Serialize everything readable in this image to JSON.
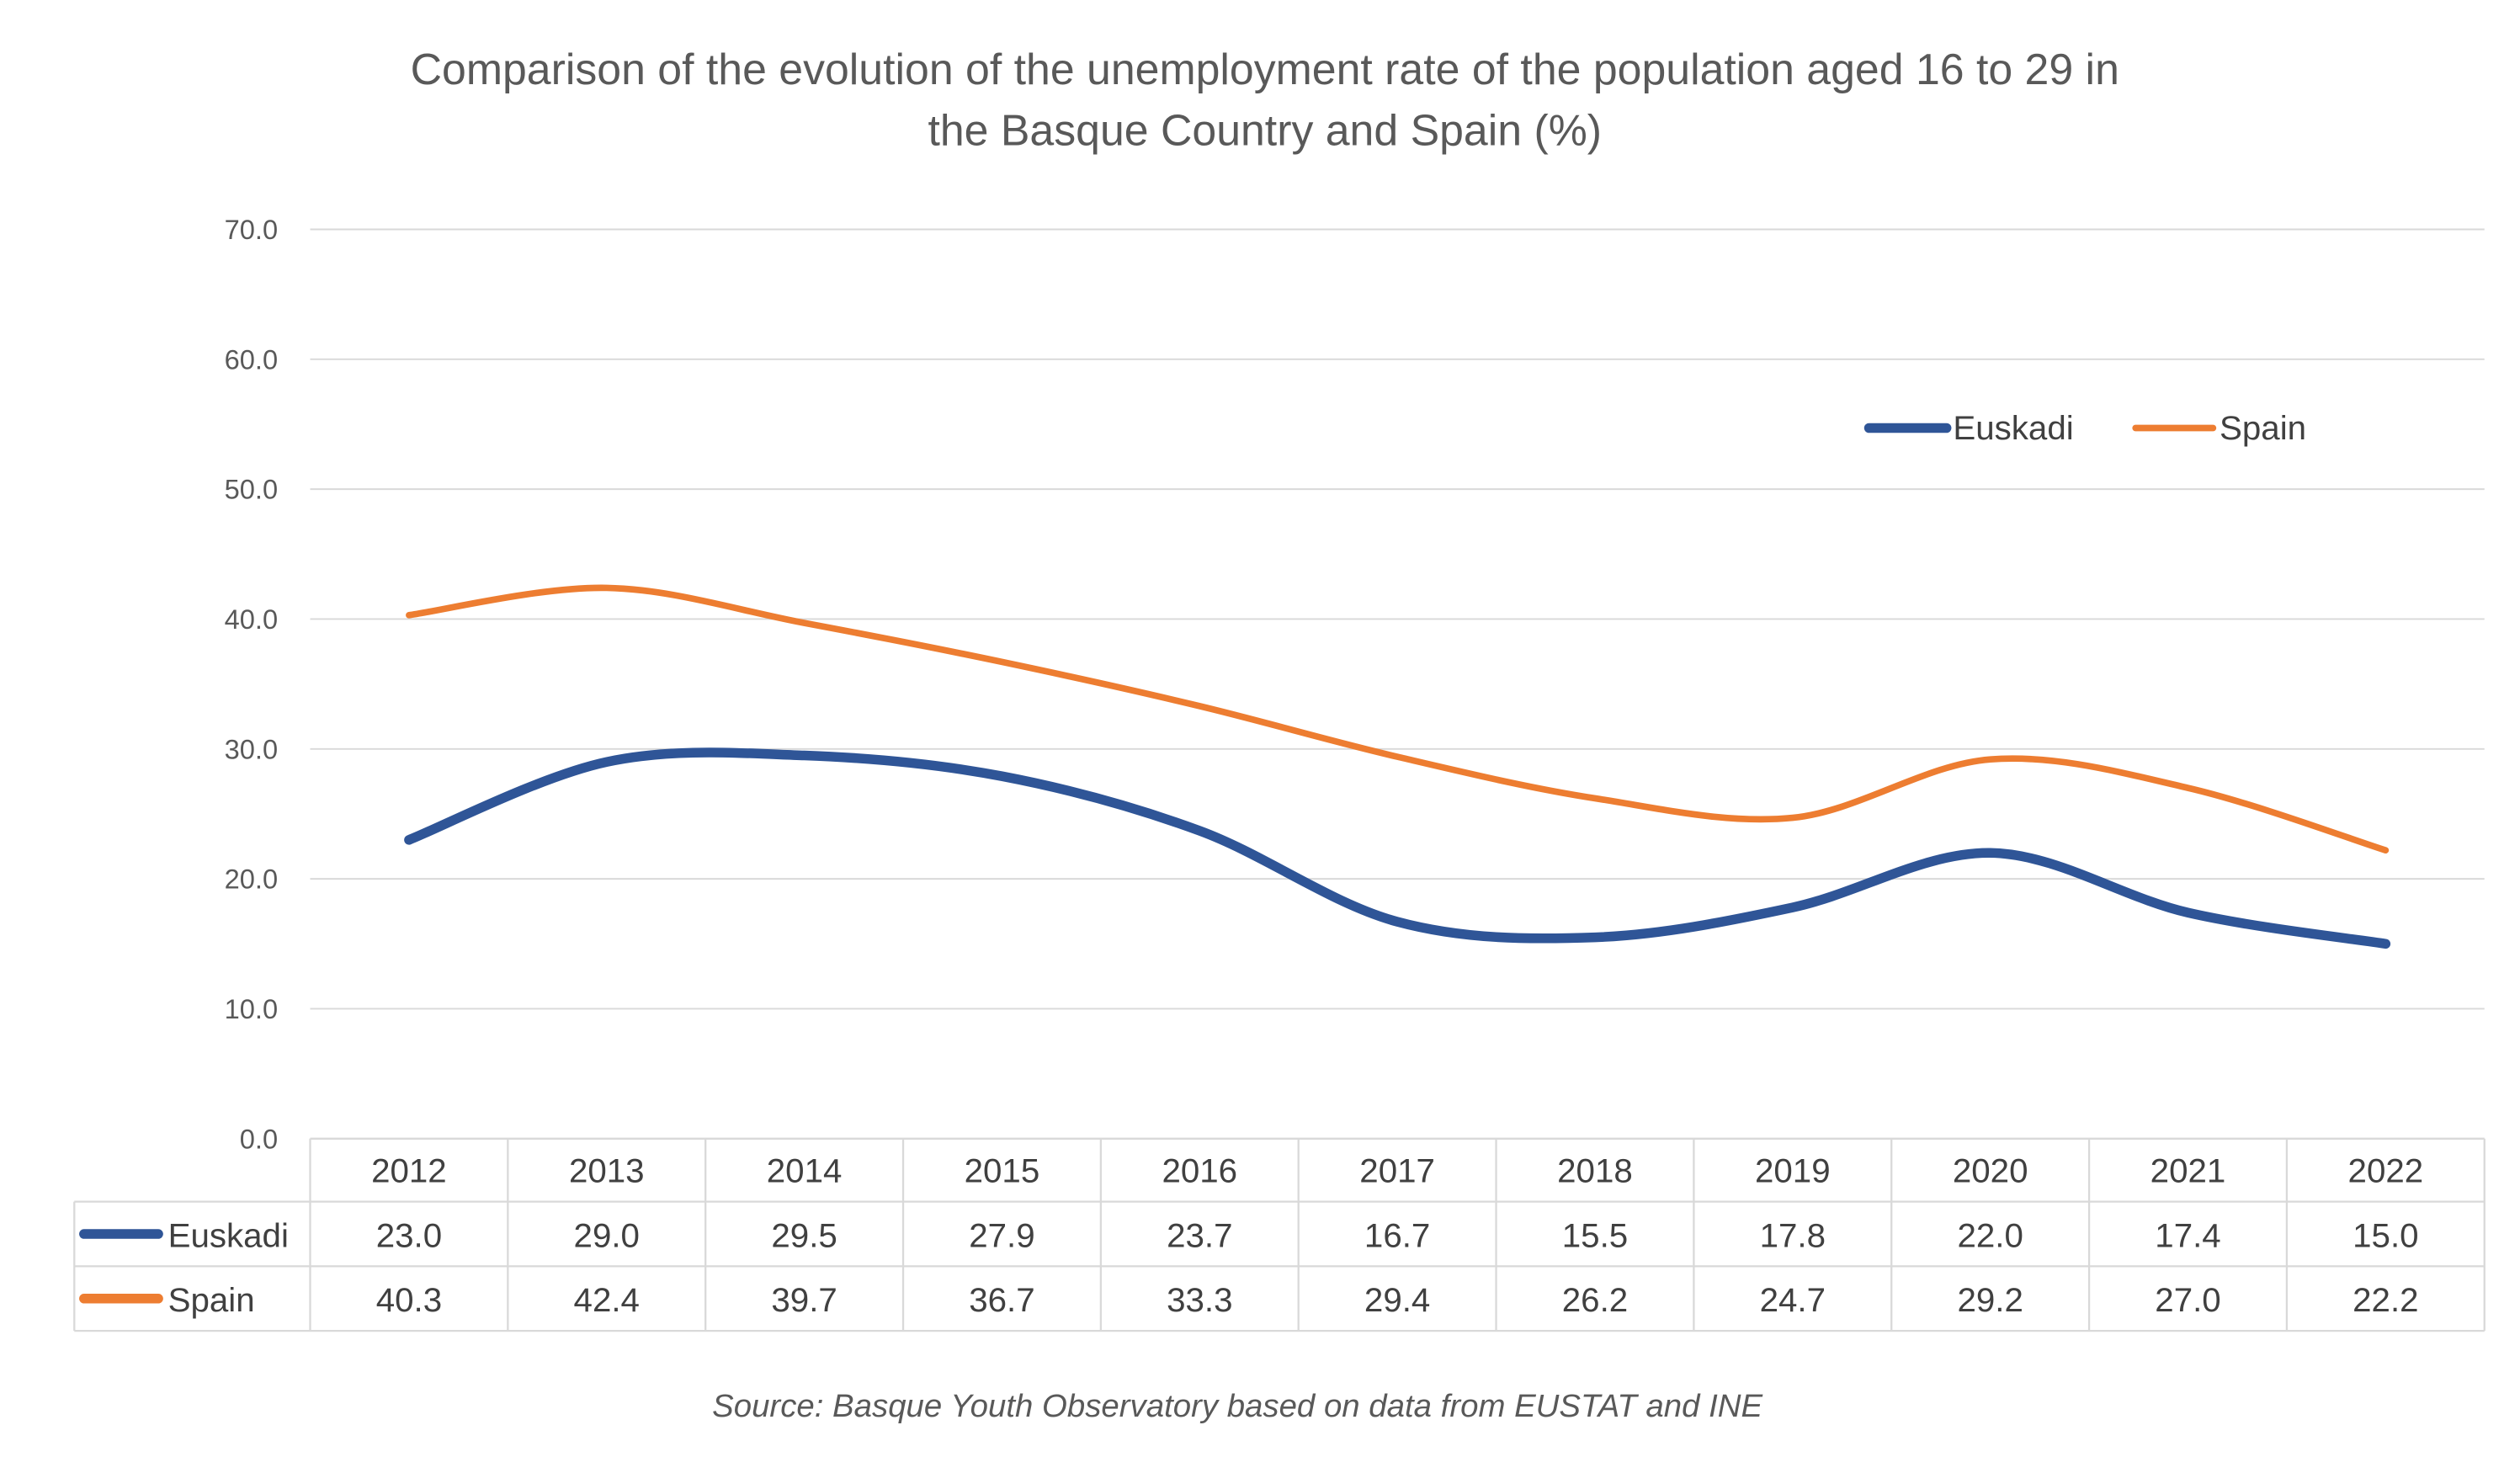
{
  "chart_data": {
    "type": "line",
    "title": "Comparison of the evolution of the unemployment rate of the population aged 16 to 29 in the Basque Country and Spain (%)",
    "title_lines": [
      "Comparison of the evolution of the unemployment rate of the population aged 16 to 29 in",
      "the Basque Country and Spain (%)"
    ],
    "xlabel": "",
    "ylabel": "",
    "categories": [
      "2012",
      "2013",
      "2014",
      "2015",
      "2016",
      "2017",
      "2018",
      "2019",
      "2020",
      "2021",
      "2022"
    ],
    "series": [
      {
        "name": "Euskadi",
        "color": "#2F5597",
        "values": [
          23.0,
          29.0,
          29.5,
          27.9,
          23.7,
          16.7,
          15.5,
          17.8,
          22.0,
          17.4,
          15.0
        ]
      },
      {
        "name": "Spain",
        "color": "#ED7D31",
        "values": [
          40.3,
          42.4,
          39.7,
          36.7,
          33.3,
          29.4,
          26.2,
          24.7,
          29.2,
          27.0,
          22.2
        ]
      }
    ],
    "ylim": [
      0,
      70
    ],
    "yticks": [
      "0.0",
      "10.0",
      "20.0",
      "30.0",
      "40.0",
      "50.0",
      "60.0",
      "70.0"
    ],
    "grid": true,
    "smoothed": true,
    "legend_position": "top-right",
    "data_table": true,
    "source": "Source: Basque Youth Observatory based on data from EUSTAT and INE"
  }
}
